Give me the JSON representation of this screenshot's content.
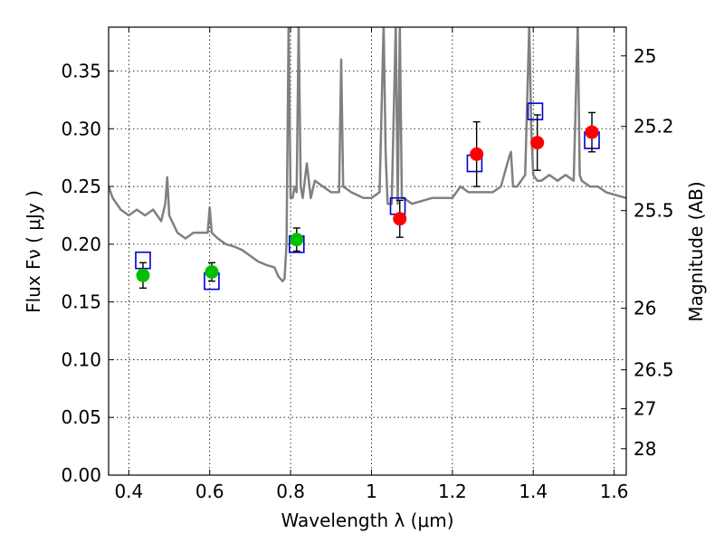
{
  "chart_data": {
    "type": "scatter",
    "title": "",
    "xlabel": "Wavelength  λ (μm)",
    "ylabel": "Flux  Fν  ( μJy )",
    "y2label": "Magnitude (AB)",
    "xlim": [
      0.35,
      1.63
    ],
    "ylim": [
      0.0,
      0.388
    ],
    "grid": true,
    "x_ticks": [
      0.4,
      0.6,
      0.8,
      1.0,
      1.2,
      1.4,
      1.6
    ],
    "x_tick_labels": [
      "0.4",
      "0.6",
      "0.8",
      "1",
      "1.2",
      "1.4",
      "1.6"
    ],
    "y_ticks": [
      0.0,
      0.05,
      0.1,
      0.15,
      0.2,
      0.25,
      0.3,
      0.35
    ],
    "y_tick_labels": [
      "0.00",
      "0.05",
      "0.10",
      "0.15",
      "0.20",
      "0.25",
      "0.30",
      "0.35"
    ],
    "mag_ticks": [
      {
        "label": "25",
        "flux": 0.3631
      },
      {
        "label": "25.2",
        "flux": 0.302
      },
      {
        "label": "25.5",
        "flux": 0.2291
      },
      {
        "label": "26",
        "flux": 0.1445
      },
      {
        "label": "26.5",
        "flux": 0.0912
      },
      {
        "label": "27",
        "flux": 0.0575
      },
      {
        "label": "28",
        "flux": 0.0229
      }
    ],
    "colors": {
      "model": "#808080",
      "optical": "#00c000",
      "nir": "#ff0000",
      "model_box": "#0000cc",
      "errorbar": "#000000"
    },
    "series": [
      {
        "kind": "line",
        "x": [
          0.35,
          0.36,
          0.38,
          0.4,
          0.42,
          0.44,
          0.46,
          0.48,
          0.49,
          0.495,
          0.5,
          0.52,
          0.54,
          0.56,
          0.58,
          0.595,
          0.6,
          0.605,
          0.62,
          0.64,
          0.66,
          0.68,
          0.7,
          0.72,
          0.74,
          0.76,
          0.77,
          0.78,
          0.785,
          0.79,
          0.795,
          0.8,
          0.805,
          0.81,
          0.815,
          0.82,
          0.825,
          0.83,
          0.84,
          0.85,
          0.86,
          0.88,
          0.9,
          0.92,
          0.925,
          0.93,
          0.95,
          0.98,
          1.0,
          1.02,
          1.03,
          1.035,
          1.04,
          1.05,
          1.06,
          1.065,
          1.07,
          1.075,
          1.08,
          1.1,
          1.15,
          1.2,
          1.22,
          1.24,
          1.26,
          1.28,
          1.3,
          1.32,
          1.34,
          1.345,
          1.35,
          1.36,
          1.38,
          1.39,
          1.395,
          1.4,
          1.41,
          1.42,
          1.44,
          1.46,
          1.48,
          1.5,
          1.51,
          1.515,
          1.52,
          1.54,
          1.56,
          1.58,
          1.6,
          1.63
        ],
        "y": [
          0.25,
          0.24,
          0.23,
          0.225,
          0.23,
          0.225,
          0.23,
          0.22,
          0.235,
          0.258,
          0.225,
          0.21,
          0.205,
          0.21,
          0.21,
          0.21,
          0.232,
          0.21,
          0.205,
          0.2,
          0.198,
          0.195,
          0.19,
          0.185,
          0.182,
          0.18,
          0.172,
          0.168,
          0.17,
          0.2,
          0.39,
          0.24,
          0.24,
          0.25,
          0.245,
          0.39,
          0.25,
          0.24,
          0.27,
          0.24,
          0.255,
          0.25,
          0.245,
          0.245,
          0.36,
          0.25,
          0.245,
          0.24,
          0.24,
          0.245,
          0.39,
          0.28,
          0.235,
          0.235,
          0.39,
          0.235,
          0.39,
          0.24,
          0.24,
          0.235,
          0.24,
          0.24,
          0.25,
          0.245,
          0.245,
          0.245,
          0.245,
          0.25,
          0.275,
          0.28,
          0.25,
          0.25,
          0.26,
          0.39,
          0.3,
          0.26,
          0.255,
          0.255,
          0.26,
          0.255,
          0.26,
          0.255,
          0.39,
          0.26,
          0.255,
          0.25,
          0.25,
          0.245,
          0.243,
          0.24
        ]
      },
      {
        "kind": "model_photometry",
        "x": [
          0.435,
          0.605,
          0.815,
          1.065,
          1.255,
          1.405,
          1.545
        ],
        "y": [
          0.186,
          0.168,
          0.2,
          0.233,
          0.27,
          0.315,
          0.29
        ]
      },
      {
        "kind": "observed_optical",
        "x": [
          0.435,
          0.605,
          0.815
        ],
        "y": [
          0.173,
          0.176,
          0.204
        ],
        "yerr": [
          0.011,
          0.008,
          0.01
        ]
      },
      {
        "kind": "observed_nir",
        "x": [
          1.07,
          1.26,
          1.41,
          1.545
        ],
        "y": [
          0.222,
          0.278,
          0.288,
          0.297
        ],
        "yerr": [
          0.016,
          0.028,
          0.024,
          0.017
        ]
      }
    ]
  }
}
